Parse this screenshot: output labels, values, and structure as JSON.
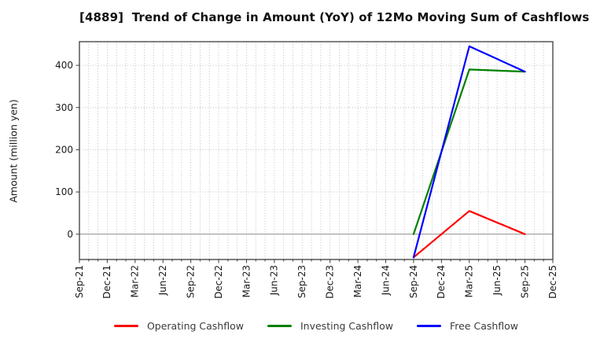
{
  "chart_data": {
    "type": "line",
    "title": "[4889]  Trend of Change in Amount (YoY) of 12Mo Moving Sum of Cashflows",
    "ylabel": "Amount (million yen)",
    "x_labels": [
      "Sep-21",
      "Dec-21",
      "Mar-22",
      "Jun-22",
      "Sep-22",
      "Dec-22",
      "Mar-23",
      "Jun-23",
      "Sep-23",
      "Dec-23",
      "Mar-24",
      "Jun-24",
      "Sep-24",
      "Dec-24",
      "Mar-25",
      "Jun-25",
      "Sep-25",
      "Dec-25"
    ],
    "yticks": [
      0,
      100,
      200,
      300,
      400
    ],
    "ylim": [
      -60,
      456
    ],
    "grid": true,
    "minor_x_gridlines_per_tick": 3,
    "legend_position": "bottom",
    "series": [
      {
        "name": "Operating Cashflow",
        "color": "#ff0000",
        "points": [
          {
            "x": "Sep-24",
            "y": -55
          },
          {
            "x": "Mar-25",
            "y": 55
          },
          {
            "x": "Sep-25",
            "y": 0
          }
        ]
      },
      {
        "name": "Investing Cashflow",
        "color": "#008000",
        "points": [
          {
            "x": "Sep-24",
            "y": 0
          },
          {
            "x": "Mar-25",
            "y": 390
          },
          {
            "x": "Sep-25",
            "y": 385
          }
        ]
      },
      {
        "name": "Free Cashflow",
        "color": "#0000ff",
        "points": [
          {
            "x": "Sep-24",
            "y": -55
          },
          {
            "x": "Mar-25",
            "y": 445
          },
          {
            "x": "Sep-25",
            "y": 385
          }
        ]
      }
    ]
  }
}
